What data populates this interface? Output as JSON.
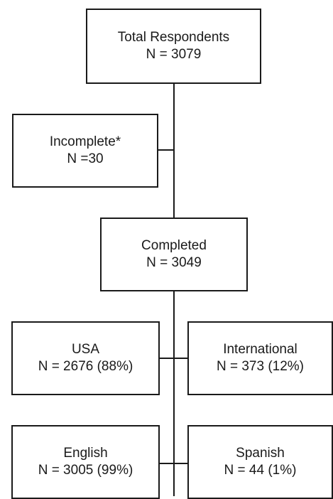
{
  "flowchart": {
    "total": {
      "label": "Total Respondents",
      "count": "N = 3079"
    },
    "incomplete": {
      "label": "Incomplete*",
      "count": "N =30"
    },
    "completed": {
      "label": "Completed",
      "count": "N = 3049"
    },
    "usa": {
      "label": "USA",
      "count": "N = 2676 (88%)"
    },
    "international": {
      "label": "International",
      "count": "N = 373 (12%)"
    },
    "english": {
      "label": "English",
      "count": "N = 3005 (99%)"
    },
    "spanish": {
      "label": "Spanish",
      "count": "N = 44 (1%)"
    }
  },
  "colors": {
    "line": "#1a1a1a",
    "background": "#ffffff"
  }
}
